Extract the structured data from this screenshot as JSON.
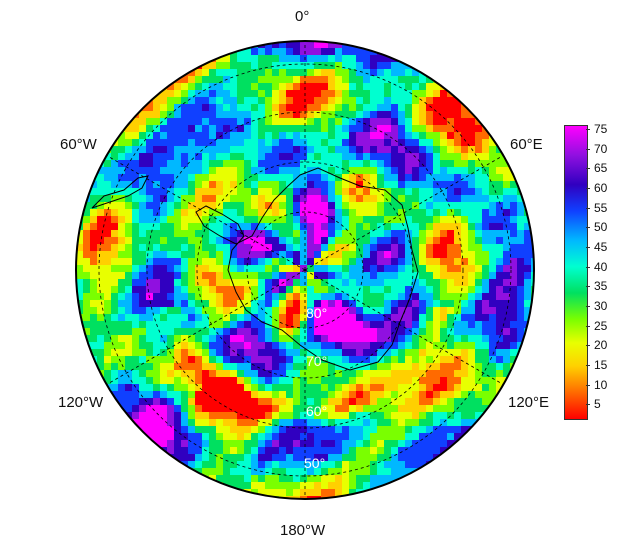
{
  "map": {
    "projection": "south-polar-stereographic",
    "lon_labels": {
      "top": "0°",
      "upper_left": "60°W",
      "upper_right": "60°E",
      "lower_left": "120°W",
      "lower_right": "120°E",
      "bottom": "180°W"
    },
    "lat_labels": [
      "80°",
      "70°",
      "60°",
      "50°"
    ],
    "colormap": [
      "#ff0000",
      "#ff6a00",
      "#ffd000",
      "#e8ff00",
      "#7aff00",
      "#00e060",
      "#00ffd0",
      "#00b8ff",
      "#1040ff",
      "#3000c0",
      "#9010e0",
      "#ff00ff"
    ]
  },
  "colorbar": {
    "ticks": [
      "75",
      "70",
      "65",
      "60",
      "55",
      "50",
      "45",
      "40",
      "35",
      "30",
      "25",
      "20",
      "15",
      "10",
      "5"
    ],
    "min": 1,
    "max": 76
  }
}
